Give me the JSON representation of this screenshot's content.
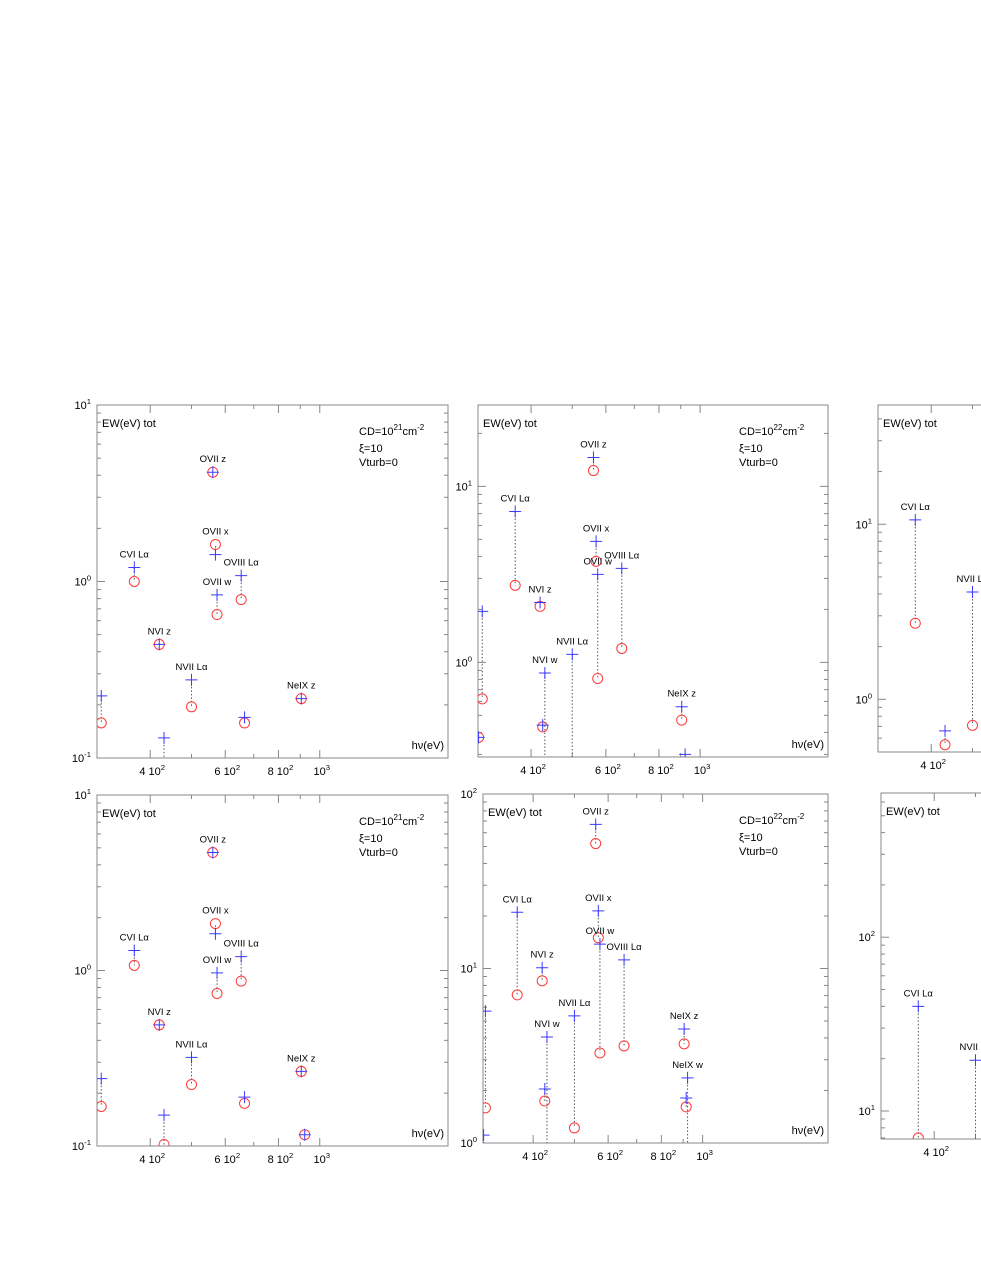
{
  "colors": {
    "plus": "#3a3aff",
    "circle": "#ff3a3a",
    "connector": "#555555",
    "frame": "#888888"
  },
  "markers": {
    "plus": "plus-icon",
    "circle": "circle-icon"
  },
  "chart_data": [
    {
      "type": "scatter",
      "xscale": "log",
      "yscale": "log",
      "xlim": [
        300,
        2000
      ],
      "ylim": [
        0.1,
        10
      ],
      "ylabel": "EW(eV) tot",
      "xlabel": "hν(eV)",
      "annotation": {
        "cd_base": "CD=10",
        "cd_exp": "21",
        "cd_unit": "cm",
        "cd_unit_exp": "-2",
        "xi": "ξ=10",
        "vturb": "Vturb=0"
      },
      "yticks": [
        {
          "base": "10",
          "exp": "1",
          "value": 10
        },
        {
          "base": "10",
          "exp": "0",
          "value": 1
        },
        {
          "base": "10",
          "exp": "-1",
          "value": 0.1
        }
      ],
      "xticks": [
        {
          "base": "4 10",
          "exp": "2",
          "value": 400
        },
        {
          "base": "6 10",
          "exp": "2",
          "value": 600
        },
        {
          "base": "8 10",
          "exp": "2",
          "value": 800
        },
        {
          "base": "10",
          "exp": "3",
          "value": 1000
        }
      ],
      "lines": [
        {
          "hv": 307,
          "plus": 0.225,
          "circle": 0.158
        },
        {
          "hv": 367,
          "label": "CVI  Lα",
          "plus": 1.2,
          "circle": 1.0
        },
        {
          "hv": 420,
          "label": "NVI z",
          "plus": 0.44,
          "circle": 0.44
        },
        {
          "hv": 431,
          "plus": 0.13,
          "circle": null
        },
        {
          "hv": 500,
          "label": "NVII Lα",
          "plus": 0.277,
          "circle": 0.195
        },
        {
          "hv": 561,
          "label": "OVII z",
          "plus": 4.16,
          "circle": 4.16
        },
        {
          "hv": 569,
          "label": "OVII x",
          "plus": 1.42,
          "circle": 1.62
        },
        {
          "hv": 574,
          "label": "OVII w",
          "plus": 0.84,
          "circle": 0.65
        },
        {
          "hv": 654,
          "label": "OVIII Lα",
          "plus": 1.08,
          "circle": 0.79
        },
        {
          "hv": 666,
          "plus": 0.17,
          "circle": 0.158
        },
        {
          "hv": 905,
          "label": "NeIX z",
          "plus": 0.217,
          "circle": 0.217
        }
      ]
    },
    {
      "type": "scatter",
      "xscale": "log",
      "yscale": "log",
      "xlim": [
        300,
        2000
      ],
      "ylim": [
        0.29,
        29
      ],
      "ylabel": "EW(eV) tot",
      "xlabel": "hν(eV)",
      "annotation": {
        "cd_base": "CD=10",
        "cd_exp": "22",
        "cd_unit": "cm",
        "cd_unit_exp": "-2",
        "xi": "ξ=10",
        "vturb": "Vturb=0"
      },
      "yticks": [
        {
          "base": "10",
          "exp": "1",
          "value": 10
        },
        {
          "base": "10",
          "exp": "0",
          "value": 1
        }
      ],
      "xticks": [
        {
          "base": "4 10",
          "exp": "2",
          "value": 400
        },
        {
          "base": "6 10",
          "exp": "2",
          "value": 600
        },
        {
          "base": "8 10",
          "exp": "2",
          "value": 800
        },
        {
          "base": "10",
          "exp": "3",
          "value": 1000
        }
      ],
      "lines": [
        {
          "hv": 301,
          "plus": 0.375,
          "circle": 0.375
        },
        {
          "hv": 307,
          "plus": 1.95,
          "circle": 0.62
        },
        {
          "hv": 367,
          "label": "CVI  Lα",
          "plus": 7.2,
          "circle": 2.74
        },
        {
          "hv": 420,
          "label": "NVI z",
          "plus": 2.19,
          "circle": 2.08
        },
        {
          "hv": 426,
          "plus": 0.44,
          "circle": 0.43
        },
        {
          "hv": 431,
          "label": "NVI w",
          "plus": 0.87,
          "circle": null
        },
        {
          "hv": 500,
          "label": "NVII Lα",
          "plus": 1.11,
          "circle": null
        },
        {
          "hv": 561,
          "label": "OVII z",
          "plus": 14.6,
          "circle": 12.3
        },
        {
          "hv": 569,
          "label": "OVII x",
          "plus": 4.87,
          "circle": 3.75
        },
        {
          "hv": 574,
          "label": "OVII w",
          "plus": 3.16,
          "circle": 0.81
        },
        {
          "hv": 654,
          "label": "OVIII Lα",
          "plus": 3.42,
          "circle": 1.2
        },
        {
          "hv": 905,
          "label": "NeIX z",
          "plus": 0.56,
          "circle": 0.47
        },
        {
          "hv": 922,
          "plus": 0.3,
          "circle": null
        }
      ]
    },
    {
      "type": "scatter",
      "xscale": "log",
      "yscale": "log",
      "xlim": [
        300,
        2000
      ],
      "ylim": [
        0.5,
        48
      ],
      "ylabel": "EW(eV) tot",
      "yticks": [
        {
          "base": "10",
          "exp": "1",
          "value": 10
        },
        {
          "base": "10",
          "exp": "0",
          "value": 1
        }
      ],
      "xticks": [
        {
          "base": "4 10",
          "exp": "2",
          "value": 400
        }
      ],
      "lines": [
        {
          "hv": 367,
          "label": "CVI  Lα",
          "plus": 10.6,
          "circle": 2.72
        },
        {
          "hv": 431,
          "plus": 0.66,
          "circle": 0.55
        },
        {
          "hv": 500,
          "label": "NVII Lα",
          "plus": 4.1,
          "circle": 0.71
        }
      ]
    },
    {
      "type": "scatter",
      "xscale": "log",
      "yscale": "log",
      "xlim": [
        300,
        2000
      ],
      "ylim": [
        0.1,
        10
      ],
      "ylabel": "EW(eV) tot",
      "xlabel": "hν(eV)",
      "annotation": {
        "cd_base": "CD=10",
        "cd_exp": "21",
        "cd_unit": "cm",
        "cd_unit_exp": "-2",
        "xi": "ξ=10",
        "vturb": "Vturb=0"
      },
      "yticks": [
        {
          "base": "10",
          "exp": "1",
          "value": 10
        },
        {
          "base": "10",
          "exp": "0",
          "value": 1
        },
        {
          "base": "10",
          "exp": "-1",
          "value": 0.1
        }
      ],
      "xticks": [
        {
          "base": "4 10",
          "exp": "2",
          "value": 400
        },
        {
          "base": "6 10",
          "exp": "2",
          "value": 600
        },
        {
          "base": "8 10",
          "exp": "2",
          "value": 800
        },
        {
          "base": "10",
          "exp": "3",
          "value": 1000
        }
      ],
      "lines": [
        {
          "hv": 307,
          "plus": 0.242,
          "circle": 0.168
        },
        {
          "hv": 367,
          "label": "CVI  Lα",
          "plus": 1.3,
          "circle": 1.07
        },
        {
          "hv": 420,
          "label": "NVI z",
          "plus": 0.49,
          "circle": 0.49
        },
        {
          "hv": 431,
          "plus": 0.15,
          "circle": 0.102
        },
        {
          "hv": 500,
          "label": "NVII Lα",
          "plus": 0.32,
          "circle": 0.224
        },
        {
          "hv": 561,
          "label": "OVII z",
          "plus": 4.7,
          "circle": 4.7
        },
        {
          "hv": 569,
          "label": "OVII x",
          "plus": 1.62,
          "circle": 1.85
        },
        {
          "hv": 574,
          "label": "OVII w",
          "plus": 0.97,
          "circle": 0.74
        },
        {
          "hv": 654,
          "label": "OVIII Lα",
          "plus": 1.2,
          "circle": 0.87
        },
        {
          "hv": 666,
          "plus": 0.19,
          "circle": 0.175
        },
        {
          "hv": 905,
          "label": "NeIX z",
          "plus": 0.266,
          "circle": 0.266
        },
        {
          "hv": 922,
          "plus": 0.116,
          "circle": 0.116
        }
      ]
    },
    {
      "type": "scatter",
      "xscale": "log",
      "yscale": "log",
      "xlim": [
        305,
        1970
      ],
      "ylim": [
        1,
        100
      ],
      "ylabel": "EW(eV) tot",
      "xlabel": "hν(eV)",
      "annotation": {
        "cd_base": "CD=10",
        "cd_exp": "22",
        "cd_unit": "cm",
        "cd_unit_exp": "-2",
        "xi": "ξ=10",
        "vturb": "Vturb=0"
      },
      "yticks": [
        {
          "base": "10",
          "exp": "2",
          "value": 100
        },
        {
          "base": "10",
          "exp": "1",
          "value": 10
        },
        {
          "base": "10",
          "exp": "0",
          "value": 1
        }
      ],
      "xticks": [
        {
          "base": "4 10",
          "exp": "2",
          "value": 400
        },
        {
          "base": "6 10",
          "exp": "2",
          "value": 600
        },
        {
          "base": "8 10",
          "exp": "2",
          "value": 800
        },
        {
          "base": "10",
          "exp": "3",
          "value": 1000
        }
      ],
      "lines": [
        {
          "hv": 306,
          "plus": 1.11,
          "circle": null
        },
        {
          "hv": 309,
          "plus": 5.7,
          "circle": 1.59
        },
        {
          "hv": 367,
          "label": "CVI  Lα",
          "plus": 21,
          "circle": 7.06
        },
        {
          "hv": 420,
          "label": "NVI z",
          "plus": 10.1,
          "circle": 8.5
        },
        {
          "hv": 426,
          "plus": 2.04,
          "circle": 1.74
        },
        {
          "hv": 431,
          "label": "NVI w",
          "plus": 4.05,
          "circle": null
        },
        {
          "hv": 500,
          "label": "NVII Lα",
          "plus": 5.35,
          "circle": 1.22
        },
        {
          "hv": 561,
          "label": "OVII z",
          "plus": 67,
          "circle": 52
        },
        {
          "hv": 569,
          "label": "OVII x",
          "plus": 21.4,
          "circle": 15
        },
        {
          "hv": 574,
          "label": "OVII w",
          "plus": 13.8,
          "circle": 3.28
        },
        {
          "hv": 654,
          "label": "OVIII Lα",
          "plus": 11.2,
          "circle": 3.6
        },
        {
          "hv": 905,
          "label": "NeIX z",
          "plus": 4.5,
          "circle": 3.7
        },
        {
          "hv": 915,
          "plus": 1.81,
          "circle": 1.61
        },
        {
          "hv": 922,
          "label": "NeIX w",
          "plus": 2.36,
          "circle": null
        }
      ]
    },
    {
      "type": "scatter",
      "xscale": "log",
      "yscale": "log",
      "xlim": [
        300,
        2000
      ],
      "ylim": [
        6.9,
        676
      ],
      "ylabel": "EW(eV) tot",
      "yticks": [
        {
          "base": "10",
          "exp": "2",
          "value": 100
        },
        {
          "base": "10",
          "exp": "1",
          "value": 10
        }
      ],
      "xticks": [
        {
          "base": "4 10",
          "exp": "2",
          "value": 400
        }
      ],
      "lines": [
        {
          "hv": 367,
          "label": "CVI  Lα",
          "plus": 40,
          "circle": 7.0
        },
        {
          "hv": 500,
          "label": "NVII Lα",
          "plus": 19.6,
          "circle": null
        }
      ]
    }
  ]
}
